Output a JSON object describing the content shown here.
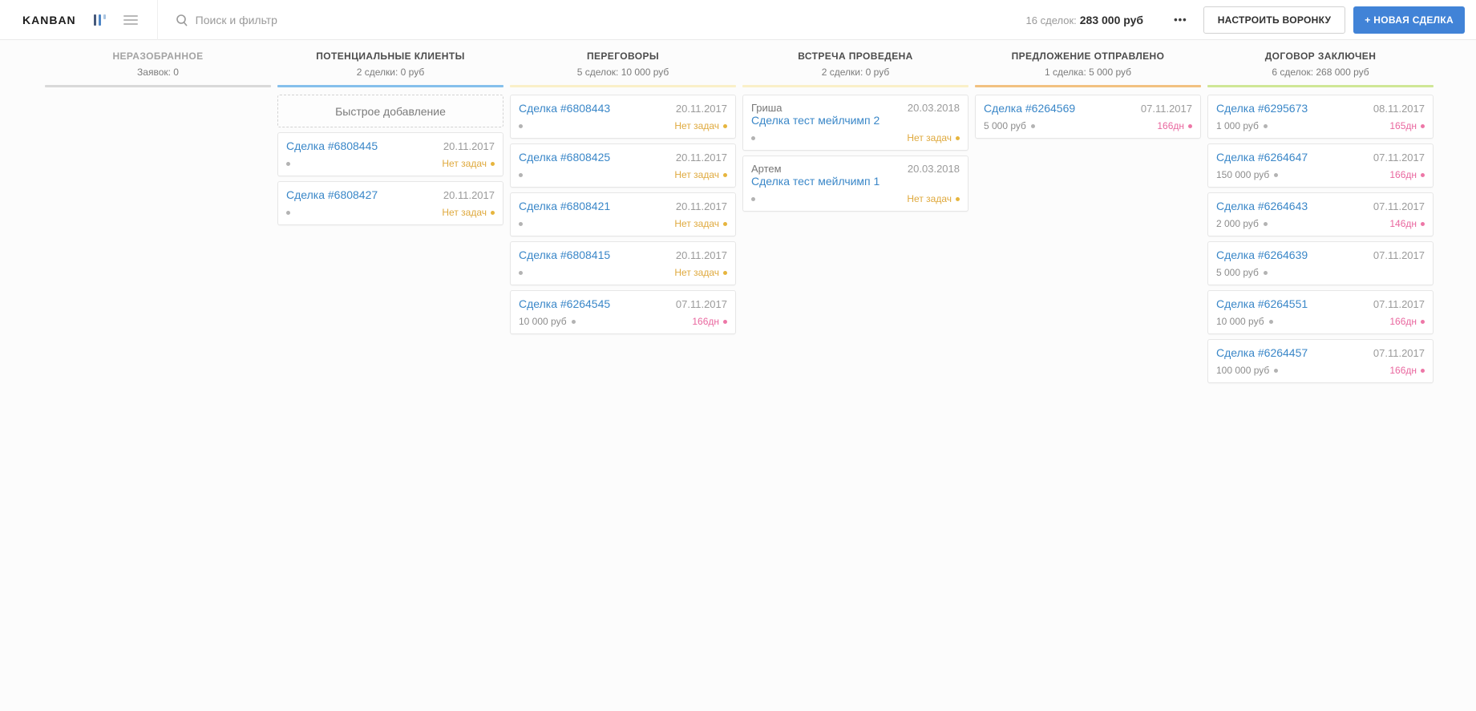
{
  "topbar": {
    "logo": "KANBAN",
    "search_placeholder": "Поиск и фильтр",
    "summary_label": "16 сделок:",
    "summary_value": "283 000 руб",
    "more_label": "•••",
    "setup_button": "НАСТРОИТЬ ВОРОНКУ",
    "new_deal_button": "+ НОВАЯ СДЕЛКА"
  },
  "colors": {
    "accent_blue": "#4183d7",
    "link_blue": "#3a87c8",
    "warn_orange": "#dfa93d",
    "overdue_pink": "#e9679f"
  },
  "board": {
    "columns": [
      {
        "title": "НЕРАЗОБРАННОЕ",
        "stats": "Заявок: 0",
        "bar_color": "#d9d9d9",
        "muted": true,
        "cards": []
      },
      {
        "title": "ПОТЕНЦИАЛЬНЫЕ КЛИЕНТЫ",
        "stats": "2 сделки: 0 руб",
        "bar_color": "#85c0ec",
        "quick_add_label": "Быстрое добавление",
        "cards": [
          {
            "title": "Сделка #6808445",
            "date": "20.11.2017",
            "task": "Нет задач",
            "task_type": "warn"
          },
          {
            "title": "Сделка #6808427",
            "date": "20.11.2017",
            "task": "Нет задач",
            "task_type": "warn"
          }
        ]
      },
      {
        "title": "ПЕРЕГОВОРЫ",
        "stats": "5 сделок: 10 000 руб",
        "bar_color": "#faf0c8",
        "cards": [
          {
            "title": "Сделка #6808443",
            "date": "20.11.2017",
            "task": "Нет задач",
            "task_type": "warn"
          },
          {
            "title": "Сделка #6808425",
            "date": "20.11.2017",
            "task": "Нет задач",
            "task_type": "warn"
          },
          {
            "title": "Сделка #6808421",
            "date": "20.11.2017",
            "task": "Нет задач",
            "task_type": "warn"
          },
          {
            "title": "Сделка #6808415",
            "date": "20.11.2017",
            "task": "Нет задач",
            "task_type": "warn"
          },
          {
            "title": "Сделка #6264545",
            "date": "07.11.2017",
            "budget": "10 000 руб",
            "task": "166дн",
            "task_type": "overdue"
          }
        ]
      },
      {
        "title": "ВСТРЕЧА ПРОВЕДЕНА",
        "stats": "2 сделки: 0 руб",
        "bar_color": "#faf0c8",
        "cards": [
          {
            "contact": "Гриша",
            "title": "Сделка тест мейлчимп 2",
            "date": "20.03.2018",
            "task": "Нет задач",
            "task_type": "warn"
          },
          {
            "contact": "Артем",
            "title": "Сделка тест мейлчимп 1",
            "date": "20.03.2018",
            "task": "Нет задач",
            "task_type": "warn"
          }
        ]
      },
      {
        "title": "ПРЕДЛОЖЕНИЕ ОТПРАВЛЕНО",
        "stats": "1 сделка: 5 000 руб",
        "bar_color": "#f2c180",
        "cards": [
          {
            "title": "Сделка #6264569",
            "date": "07.11.2017",
            "budget": "5 000 руб",
            "task": "166дн",
            "task_type": "overdue"
          }
        ]
      },
      {
        "title": "ДОГОВОР ЗАКЛЮЧЕН",
        "stats": "6 сделок: 268 000 руб",
        "bar_color": "#cfe796",
        "cards": [
          {
            "title": "Сделка #6295673",
            "date": "08.11.2017",
            "budget": "1 000 руб",
            "task": "165дн",
            "task_type": "overdue"
          },
          {
            "title": "Сделка #6264647",
            "date": "07.11.2017",
            "budget": "150 000 руб",
            "task": "166дн",
            "task_type": "overdue"
          },
          {
            "title": "Сделка #6264643",
            "date": "07.11.2017",
            "budget": "2 000 руб",
            "task": "146дн",
            "task_type": "overdue"
          },
          {
            "title": "Сделка #6264639",
            "date": "07.11.2017",
            "budget": "5 000 руб"
          },
          {
            "title": "Сделка #6264551",
            "date": "07.11.2017",
            "budget": "10 000 руб",
            "task": "166дн",
            "task_type": "overdue"
          },
          {
            "title": "Сделка #6264457",
            "date": "07.11.2017",
            "budget": "100 000 руб",
            "task": "166дн",
            "task_type": "overdue"
          }
        ]
      }
    ]
  }
}
